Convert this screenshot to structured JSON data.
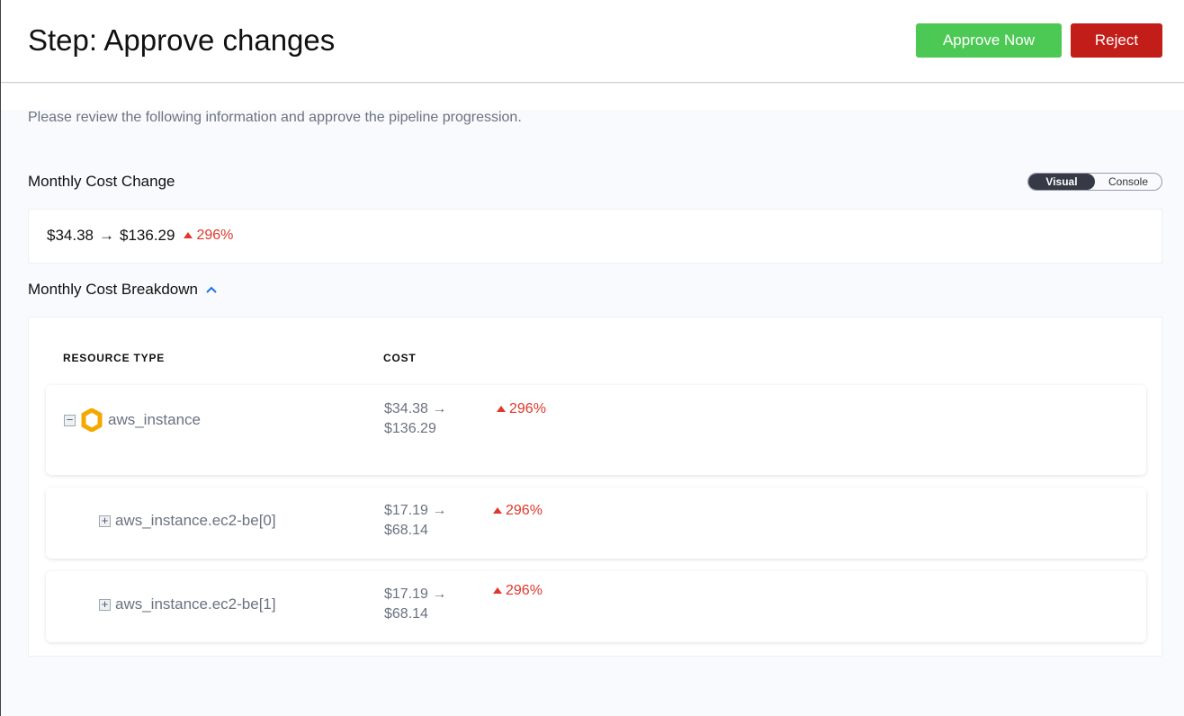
{
  "header": {
    "title": "Step: Approve changes",
    "approve_label": "Approve Now",
    "reject_label": "Reject"
  },
  "description": "Please review the following information and approve the pipeline progression.",
  "cost_change": {
    "heading": "Monthly Cost Change",
    "old": "$34.38",
    "arrow": "→",
    "new": "$136.29",
    "change": "296%"
  },
  "view_toggle": {
    "options": [
      "Visual",
      "Console"
    ],
    "selected": "Visual"
  },
  "breakdown": {
    "heading": "Monthly Cost Breakdown",
    "expanded": true,
    "columns": [
      "RESOURCE TYPE",
      "COST"
    ],
    "rows": [
      {
        "name": "aws_instance",
        "old": "$34.38 →",
        "new": "$136.29",
        "change": "296%",
        "expanded": true,
        "icon": "aws-instance-hexagon-icon"
      },
      {
        "name": "aws_instance.ec2-be[0]",
        "old": "$17.19 →",
        "new": "$68.14",
        "change": "296%",
        "expanded": false
      },
      {
        "name": "aws_instance.ec2-be[1]",
        "old": "$17.19 →",
        "new": "$68.14",
        "change": "296%",
        "expanded": false
      }
    ]
  },
  "colors": {
    "approve": "#4cc954",
    "reject": "#c21d18",
    "increase": "#e0362b",
    "accent": "#1a73e8"
  }
}
